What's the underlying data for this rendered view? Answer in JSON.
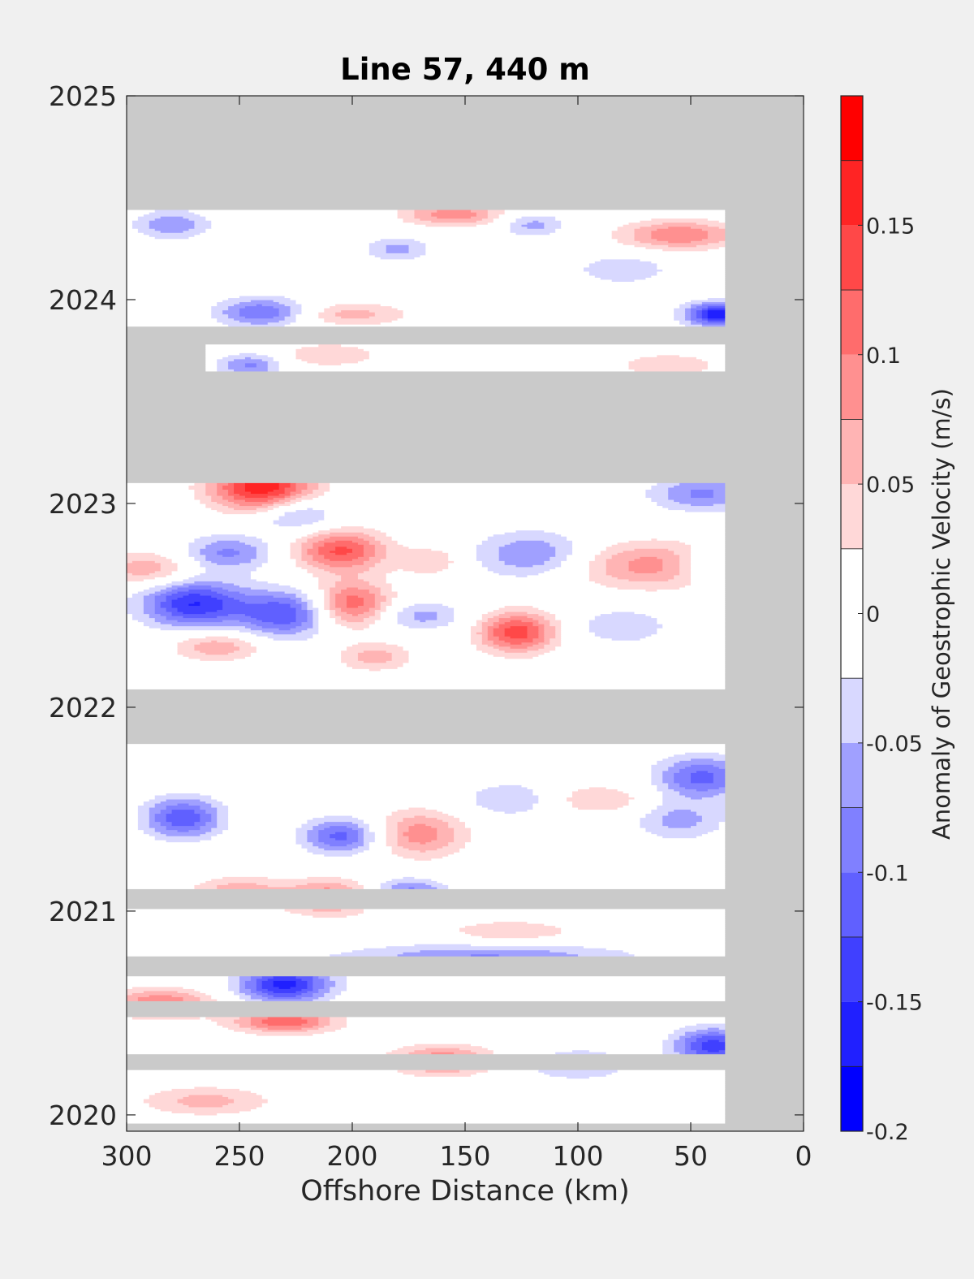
{
  "chart_data": {
    "type": "heatmap",
    "title": "Line 57, 440 m",
    "xlabel": "Offshore Distance (km)",
    "ylabel": "",
    "x_axis": {
      "range": [
        300,
        0
      ],
      "reversed": true,
      "ticks": [
        300,
        250,
        200,
        150,
        100,
        50,
        0
      ],
      "tick_labels": [
        "300",
        "250",
        "200",
        "150",
        "100",
        "50",
        "0"
      ]
    },
    "y_axis": {
      "range": [
        2019.92,
        2025
      ],
      "ticks": [
        2020,
        2021,
        2022,
        2023,
        2024,
        2025
      ],
      "tick_labels": [
        "2020",
        "2021",
        "2022",
        "2023",
        "2024",
        "2025"
      ]
    },
    "colorbar": {
      "label": "Anomaly of Geostrophic Velocity (m/s)",
      "range": [
        -0.2,
        0.2
      ],
      "ticks": [
        -0.2,
        -0.15,
        -0.1,
        -0.05,
        0,
        0.05,
        0.1,
        0.15
      ],
      "tick_labels": [
        "-0.2",
        "-0.15",
        "-0.1",
        "-0.05",
        "0",
        "0.05",
        "0.1",
        "0.15"
      ],
      "levels": [
        {
          "from": -0.2,
          "to": -0.175,
          "color": "#0000ff"
        },
        {
          "from": -0.175,
          "to": -0.15,
          "color": "#2020ff"
        },
        {
          "from": -0.15,
          "to": -0.125,
          "color": "#4040ff"
        },
        {
          "from": -0.125,
          "to": -0.1,
          "color": "#6060ff"
        },
        {
          "from": -0.1,
          "to": -0.075,
          "color": "#8080ff"
        },
        {
          "from": -0.075,
          "to": -0.05,
          "color": "#a0a0ff"
        },
        {
          "from": -0.05,
          "to": -0.025,
          "color": "#d8d8ff"
        },
        {
          "from": -0.025,
          "to": 0,
          "color": "#ffffff"
        },
        {
          "from": 0,
          "to": 0.025,
          "color": "#ffffff"
        },
        {
          "from": 0.025,
          "to": 0.05,
          "color": "#ffd8d8"
        },
        {
          "from": 0.05,
          "to": 0.075,
          "color": "#ffb4b4"
        },
        {
          "from": 0.075,
          "to": 0.1,
          "color": "#ff9090"
        },
        {
          "from": 0.1,
          "to": 0.125,
          "color": "#ff6c6c"
        },
        {
          "from": 0.125,
          "to": 0.15,
          "color": "#ff4848"
        },
        {
          "from": 0.15,
          "to": 0.175,
          "color": "#ff2424"
        },
        {
          "from": 0.175,
          "to": 0.2,
          "color": "#ff0000"
        }
      ]
    },
    "missing_color": "#cacaca",
    "data_bands": [
      {
        "t0": 2019.96,
        "t1": 2020.22,
        "x_far": 300,
        "x_near": 35
      },
      {
        "t0": 2020.3,
        "t1": 2020.48,
        "x_far": 300,
        "x_near": 35
      },
      {
        "t0": 2020.56,
        "t1": 2020.68,
        "x_far": 300,
        "x_near": 35
      },
      {
        "t0": 2020.78,
        "t1": 2021.01,
        "x_far": 300,
        "x_near": 35
      },
      {
        "t0": 2021.11,
        "t1": 2021.82,
        "x_far": 300,
        "x_near": 35
      },
      {
        "t0": 2022.09,
        "t1": 2023.1,
        "x_far": 300,
        "x_near": 35
      },
      {
        "t0": 2023.65,
        "t1": 2023.78,
        "x_far": 265,
        "x_near": 35
      },
      {
        "t0": 2023.87,
        "t1": 2024.44,
        "x_far": 300,
        "x_near": 35
      }
    ],
    "features": [
      {
        "x": 270,
        "t": 2022.51,
        "v": -0.15,
        "sx": 16,
        "st": 0.08
      },
      {
        "x": 230,
        "t": 2022.46,
        "v": -0.12,
        "sx": 14,
        "st": 0.08
      },
      {
        "x": 205,
        "t": 2022.77,
        "v": 0.13,
        "sx": 14,
        "st": 0.07
      },
      {
        "x": 200,
        "t": 2022.51,
        "v": 0.12,
        "sx": 12,
        "st": 0.08
      },
      {
        "x": 127,
        "t": 2022.37,
        "v": 0.14,
        "sx": 12,
        "st": 0.07
      },
      {
        "x": 240,
        "t": 2023.08,
        "v": 0.17,
        "sx": 16,
        "st": 0.08
      },
      {
        "x": 65,
        "t": 2022.7,
        "v": 0.09,
        "sx": 28,
        "st": 0.08
      },
      {
        "x": 120,
        "t": 2022.75,
        "v": -0.08,
        "sx": 18,
        "st": 0.08
      },
      {
        "x": 290,
        "t": 2022.68,
        "v": 0.07,
        "sx": 14,
        "st": 0.06
      },
      {
        "x": 255,
        "t": 2022.76,
        "v": -0.08,
        "sx": 14,
        "st": 0.06
      },
      {
        "x": 225,
        "t": 2022.95,
        "v": -0.07,
        "sx": 12,
        "st": 0.06
      },
      {
        "x": 165,
        "t": 2022.72,
        "v": 0.05,
        "sx": 10,
        "st": 0.05
      },
      {
        "x": 170,
        "t": 2022.45,
        "v": -0.06,
        "sx": 14,
        "st": 0.05
      },
      {
        "x": 260,
        "t": 2022.3,
        "v": 0.07,
        "sx": 14,
        "st": 0.05
      },
      {
        "x": 40,
        "t": 2022.7,
        "v": -0.07,
        "sx": 12,
        "st": 0.06
      },
      {
        "x": 45,
        "t": 2023.05,
        "v": -0.08,
        "sx": 16,
        "st": 0.06
      },
      {
        "x": 80,
        "t": 2022.4,
        "v": -0.05,
        "sx": 14,
        "st": 0.06
      },
      {
        "x": 190,
        "t": 2022.25,
        "v": 0.06,
        "sx": 12,
        "st": 0.05
      },
      {
        "x": 275,
        "t": 2021.46,
        "v": -0.12,
        "sx": 12,
        "st": 0.07
      },
      {
        "x": 205,
        "t": 2021.37,
        "v": -0.11,
        "sx": 12,
        "st": 0.06
      },
      {
        "x": 170,
        "t": 2021.38,
        "v": 0.09,
        "sx": 14,
        "st": 0.08
      },
      {
        "x": 210,
        "t": 2021.07,
        "v": 0.1,
        "sx": 14,
        "st": 0.06
      },
      {
        "x": 250,
        "t": 2021.1,
        "v": 0.07,
        "sx": 14,
        "st": 0.05
      },
      {
        "x": 175,
        "t": 2021.09,
        "v": -0.09,
        "sx": 12,
        "st": 0.05
      },
      {
        "x": 45,
        "t": 2021.66,
        "v": -0.11,
        "sx": 14,
        "st": 0.07
      },
      {
        "x": 140,
        "t": 2020.77,
        "v": -0.08,
        "sx": 44,
        "st": 0.05
      },
      {
        "x": 230,
        "t": 2020.64,
        "v": -0.16,
        "sx": 14,
        "st": 0.06
      },
      {
        "x": 285,
        "t": 2020.55,
        "v": 0.1,
        "sx": 16,
        "st": 0.05
      },
      {
        "x": 230,
        "t": 2020.46,
        "v": 0.12,
        "sx": 16,
        "st": 0.04
      },
      {
        "x": 160,
        "t": 2020.27,
        "v": 0.1,
        "sx": 16,
        "st": 0.05
      },
      {
        "x": 40,
        "t": 2020.34,
        "v": -0.14,
        "sx": 12,
        "st": 0.06
      },
      {
        "x": 55,
        "t": 2021.45,
        "v": -0.06,
        "sx": 14,
        "st": 0.07
      },
      {
        "x": 90,
        "t": 2021.55,
        "v": 0.05,
        "sx": 16,
        "st": 0.05
      },
      {
        "x": 130,
        "t": 2021.55,
        "v": -0.05,
        "sx": 14,
        "st": 0.06
      },
      {
        "x": 265,
        "t": 2020.07,
        "v": 0.06,
        "sx": 20,
        "st": 0.05
      },
      {
        "x": 100,
        "t": 2020.25,
        "v": -0.06,
        "sx": 16,
        "st": 0.05
      },
      {
        "x": 130,
        "t": 2020.9,
        "v": 0.05,
        "sx": 20,
        "st": 0.04
      },
      {
        "x": 240,
        "t": 2023.94,
        "v": -0.1,
        "sx": 14,
        "st": 0.05
      },
      {
        "x": 38,
        "t": 2023.93,
        "v": -0.17,
        "sx": 10,
        "st": 0.04
      },
      {
        "x": 155,
        "t": 2024.42,
        "v": 0.09,
        "sx": 16,
        "st": 0.04
      },
      {
        "x": 55,
        "t": 2024.32,
        "v": 0.1,
        "sx": 18,
        "st": 0.05
      },
      {
        "x": 280,
        "t": 2024.37,
        "v": -0.07,
        "sx": 12,
        "st": 0.05
      },
      {
        "x": 120,
        "t": 2024.37,
        "v": -0.06,
        "sx": 10,
        "st": 0.04
      },
      {
        "x": 180,
        "t": 2024.25,
        "v": -0.06,
        "sx": 10,
        "st": 0.04
      },
      {
        "x": 200,
        "t": 2023.93,
        "v": 0.06,
        "sx": 18,
        "st": 0.04
      },
      {
        "x": 80,
        "t": 2024.15,
        "v": -0.05,
        "sx": 14,
        "st": 0.05
      },
      {
        "x": 245,
        "t": 2023.68,
        "v": -0.08,
        "sx": 10,
        "st": 0.04
      },
      {
        "x": 210,
        "t": 2023.73,
        "v": 0.05,
        "sx": 16,
        "st": 0.04
      },
      {
        "x": 60,
        "t": 2023.68,
        "v": 0.05,
        "sx": 16,
        "st": 0.04
      }
    ]
  }
}
